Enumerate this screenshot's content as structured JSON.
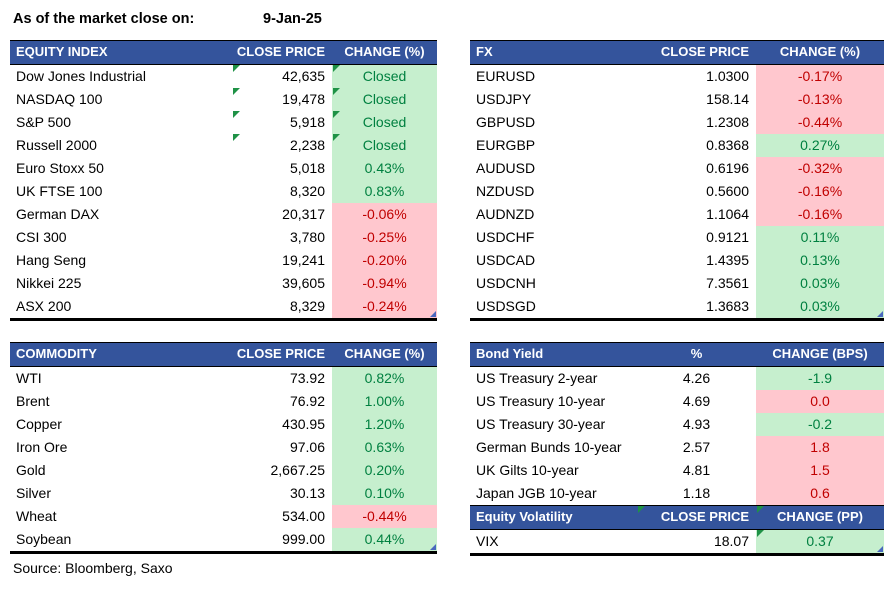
{
  "meta": {
    "as_of_label": "As of the market close on:",
    "as_of_date": "9-Jan-25",
    "source": "Source: Bloomberg, Saxo"
  },
  "colors": {
    "header_bg": "#34549C",
    "positive_bg": "#C6EFCE",
    "positive_text": "#008040",
    "negative_bg": "#FFC7CE",
    "negative_text": "#C00000",
    "marker_green": "#1F9246",
    "marker_blue": "#4A68BE"
  },
  "tables": {
    "equity": {
      "headers": [
        "EQUITY INDEX",
        "CLOSE PRICE",
        "CHANGE (%)"
      ],
      "rows": [
        {
          "name": "Dow Jones Industrial",
          "price": "42,635",
          "change": "Closed",
          "tone": "pos",
          "tlp": true,
          "tlc": true
        },
        {
          "name": "NASDAQ 100",
          "price": "19,478",
          "change": "Closed",
          "tone": "pos",
          "tlp": true,
          "tlc": true
        },
        {
          "name": "S&P 500",
          "price": "5,918",
          "change": "Closed",
          "tone": "pos",
          "tlp": true,
          "tlc": true
        },
        {
          "name": "Russell 2000",
          "price": "2,238",
          "change": "Closed",
          "tone": "pos",
          "tlp": true,
          "tlc": true
        },
        {
          "name": "Euro Stoxx 50",
          "price": "5,018",
          "change": "0.43%",
          "tone": "pos"
        },
        {
          "name": "UK FTSE 100",
          "price": "8,320",
          "change": "0.83%",
          "tone": "pos"
        },
        {
          "name": "German DAX",
          "price": "20,317",
          "change": "-0.06%",
          "tone": "neg"
        },
        {
          "name": "CSI 300",
          "price": "3,780",
          "change": "-0.25%",
          "tone": "neg"
        },
        {
          "name": "Hang Seng",
          "price": "19,241",
          "change": "-0.20%",
          "tone": "neg"
        },
        {
          "name": "Nikkei 225",
          "price": "39,605",
          "change": "-0.94%",
          "tone": "neg"
        },
        {
          "name": "ASX 200",
          "price": "8,329",
          "change": "-0.24%",
          "tone": "neg",
          "brc": true
        }
      ]
    },
    "fx": {
      "headers": [
        "FX",
        "CLOSE PRICE",
        "CHANGE (%)"
      ],
      "rows": [
        {
          "name": "EURUSD",
          "price": "1.0300",
          "change": "-0.17%",
          "tone": "neg"
        },
        {
          "name": "USDJPY",
          "price": "158.14",
          "change": "-0.13%",
          "tone": "neg"
        },
        {
          "name": "GBPUSD",
          "price": "1.2308",
          "change": "-0.44%",
          "tone": "neg"
        },
        {
          "name": "EURGBP",
          "price": "0.8368",
          "change": "0.27%",
          "tone": "pos"
        },
        {
          "name": "AUDUSD",
          "price": "0.6196",
          "change": "-0.32%",
          "tone": "neg"
        },
        {
          "name": "NZDUSD",
          "price": "0.5600",
          "change": "-0.16%",
          "tone": "neg"
        },
        {
          "name": "AUDNZD",
          "price": "1.1064",
          "change": "-0.16%",
          "tone": "neg"
        },
        {
          "name": "USDCHF",
          "price": "0.9121",
          "change": "0.11%",
          "tone": "pos"
        },
        {
          "name": "USDCAD",
          "price": "1.4395",
          "change": "0.13%",
          "tone": "pos"
        },
        {
          "name": "USDCNH",
          "price": "7.3561",
          "change": "0.03%",
          "tone": "pos"
        },
        {
          "name": "USDSGD",
          "price": "1.3683",
          "change": "0.03%",
          "tone": "pos",
          "brc": true
        }
      ]
    },
    "commodity": {
      "headers": [
        "COMMODITY",
        "CLOSE PRICE",
        "CHANGE (%)"
      ],
      "rows": [
        {
          "name": "WTI",
          "price": "73.92",
          "change": "0.82%",
          "tone": "pos"
        },
        {
          "name": "Brent",
          "price": "76.92",
          "change": "1.00%",
          "tone": "pos"
        },
        {
          "name": "Copper",
          "price": "430.95",
          "change": "1.20%",
          "tone": "pos"
        },
        {
          "name": "Iron Ore",
          "price": "97.06",
          "change": "0.63%",
          "tone": "pos"
        },
        {
          "name": "Gold",
          "price": "2,667.25",
          "change": "0.20%",
          "tone": "pos"
        },
        {
          "name": "Silver",
          "price": "30.13",
          "change": "0.10%",
          "tone": "pos"
        },
        {
          "name": "Wheat",
          "price": "534.00",
          "change": "-0.44%",
          "tone": "neg"
        },
        {
          "name": "Soybean",
          "price": "999.00",
          "change": "0.44%",
          "tone": "pos",
          "brc": true
        }
      ]
    },
    "bond": {
      "headers": [
        "Bond Yield",
        "%",
        "CHANGE (BPS)"
      ],
      "rows": [
        {
          "name": "US Treasury 2-year",
          "price": "4.26",
          "change": "-1.9",
          "tone": "pos"
        },
        {
          "name": "US Treasury 10-year",
          "price": "4.69",
          "change": "0.0",
          "tone": "neg"
        },
        {
          "name": "US Treasury 30-year",
          "price": "4.93",
          "change": "-0.2",
          "tone": "pos"
        },
        {
          "name": "German Bunds 10-year",
          "price": "2.57",
          "change": "1.8",
          "tone": "neg"
        },
        {
          "name": "UK Gilts 10-year",
          "price": "4.81",
          "change": "1.5",
          "tone": "neg"
        },
        {
          "name": "Japan JGB 10-year",
          "price": "1.18",
          "change": "0.6",
          "tone": "neg"
        }
      ]
    },
    "volatility": {
      "headers": [
        "Equity Volatility",
        "CLOSE PRICE",
        "CHANGE (PP)"
      ],
      "rows": [
        {
          "name": "VIX",
          "price": "18.07",
          "change": "0.37",
          "tone": "pos",
          "tlc": true,
          "brc": true
        }
      ]
    }
  }
}
